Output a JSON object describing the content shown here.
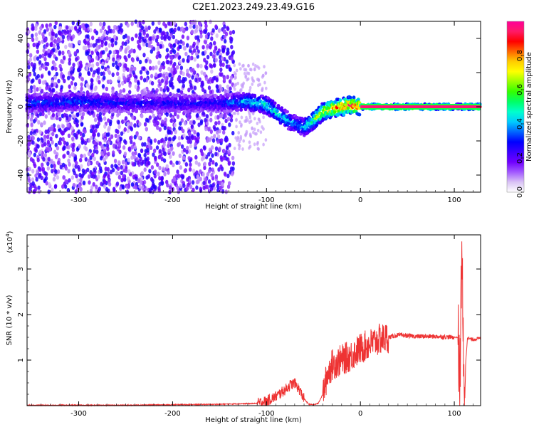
{
  "figure": {
    "title": "C2E1.2023.249.23.49.G16"
  },
  "chart_data": [
    {
      "type": "heatmap",
      "xlabel": "Height of straight line (km)",
      "ylabel": "Frequency (Hz)",
      "xlim": [
        -355,
        128
      ],
      "ylim": [
        -50,
        50
      ],
      "x_ticks": [
        -300,
        -200,
        -100,
        0,
        100
      ],
      "y_ticks": [
        -40,
        -20,
        0,
        20,
        40
      ],
      "colorbar": {
        "label": "Normalized spectral amplitude",
        "range": [
          0,
          1
        ],
        "ticks": [
          0.0,
          0.2,
          0.4,
          0.6,
          0.8
        ],
        "colormap": [
          "#ffffff",
          "#d9c2f5",
          "#a259ff",
          "#7000ff",
          "#3a00ff",
          "#0000ff",
          "#0066ff",
          "#00ccff",
          "#00ffcc",
          "#00ff66",
          "#33ff00",
          "#99ff00",
          "#ffff00",
          "#ffcc00",
          "#ff6600",
          "#ff0000",
          "#ff1a66",
          "#ff0099"
        ]
      },
      "ridge": {
        "x": [
          -355,
          -300,
          -250,
          -200,
          -150,
          -120,
          -100,
          -90,
          -80,
          -70,
          -60,
          -50,
          -40,
          -30,
          -20,
          -10,
          0,
          20,
          60,
          100,
          105,
          110,
          128
        ],
        "y": [
          2,
          3,
          2,
          2,
          2,
          3,
          1,
          -3,
          -7,
          -10,
          -12,
          -8,
          -3,
          -1,
          0,
          1,
          0,
          0,
          0,
          0,
          0,
          0,
          0
        ],
        "peak_amplitude": [
          0.35,
          0.35,
          0.3,
          0.3,
          0.3,
          0.45,
          0.5,
          0.5,
          0.45,
          0.4,
          0.45,
          0.6,
          0.75,
          0.85,
          0.9,
          0.92,
          0.95,
          0.96,
          0.96,
          0.96,
          0.5,
          0.96,
          0.96
        ]
      },
      "scatter_region": {
        "x": [
          -355,
          -135
        ],
        "amplitude": 0.15,
        "sparse_until": -100
      }
    },
    {
      "type": "line",
      "xlabel": "Height of straight line (km)",
      "ylabel": "SNR (10 * v/v)",
      "y_multiplier": "(x10",
      "y_multiplier_exp": "4",
      "y_multiplier_close": ")",
      "xlim": [
        -355,
        128
      ],
      "ylim": [
        0,
        3.75
      ],
      "x_ticks": [
        -300,
        -200,
        -100,
        0,
        100
      ],
      "y_ticks": [
        1,
        2,
        3
      ],
      "series": [
        {
          "color": "#ee3333",
          "x": [
            -355,
            -250,
            -150,
            -110,
            -100,
            -90,
            -80,
            -75,
            -70,
            -65,
            -60,
            -55,
            -50,
            -45,
            -40,
            -35,
            -30,
            -25,
            -20,
            -10,
            0,
            10,
            20,
            30,
            40,
            60,
            80,
            100,
            104,
            106,
            108,
            110,
            114,
            118,
            128
          ],
          "y": [
            0.01,
            0.01,
            0.03,
            0.05,
            0.1,
            0.2,
            0.35,
            0.45,
            0.5,
            0.35,
            0.15,
            0.03,
            0.02,
            0.05,
            0.25,
            0.7,
            0.9,
            0.95,
            1.0,
            1.1,
            1.25,
            1.35,
            1.45,
            1.5,
            1.55,
            1.52,
            1.52,
            1.5,
            1.5,
            0.3,
            3.7,
            0.3,
            1.5,
            1.45,
            1.48
          ]
        }
      ]
    }
  ]
}
